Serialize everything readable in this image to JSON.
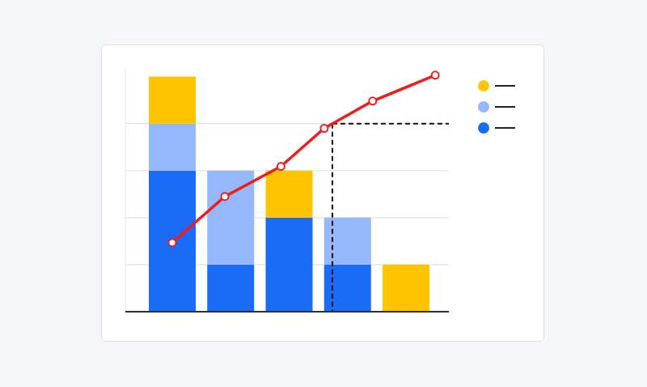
{
  "chart_data": {
    "type": "bar",
    "stacked": true,
    "categories": [
      null,
      null,
      null,
      null,
      null
    ],
    "series": [
      {
        "color": "#1a6cf6",
        "values": [
          3,
          1,
          2,
          1,
          0
        ]
      },
      {
        "color": "#94b8fb",
        "values": [
          1,
          2,
          0,
          1,
          0
        ]
      },
      {
        "color": "#ffc400",
        "values": [
          1,
          0,
          1,
          0,
          1
        ]
      },
      {
        "type": "line",
        "color": "#ee1c1c",
        "marker": "circle",
        "x": [
          0,
          0.9,
          1.86,
          2.6,
          3.43,
          4.5
        ],
        "values": [
          1.47,
          2.45,
          3.09,
          3.9,
          4.48,
          5.03
        ]
      }
    ],
    "ylim": [
      0,
      5.2
    ],
    "yticks": [
      0,
      1,
      2,
      3,
      4
    ],
    "grid": true,
    "tick_labels": false,
    "legend": "right",
    "reference_lines": {
      "x": 2.74,
      "y": 4
    }
  }
}
